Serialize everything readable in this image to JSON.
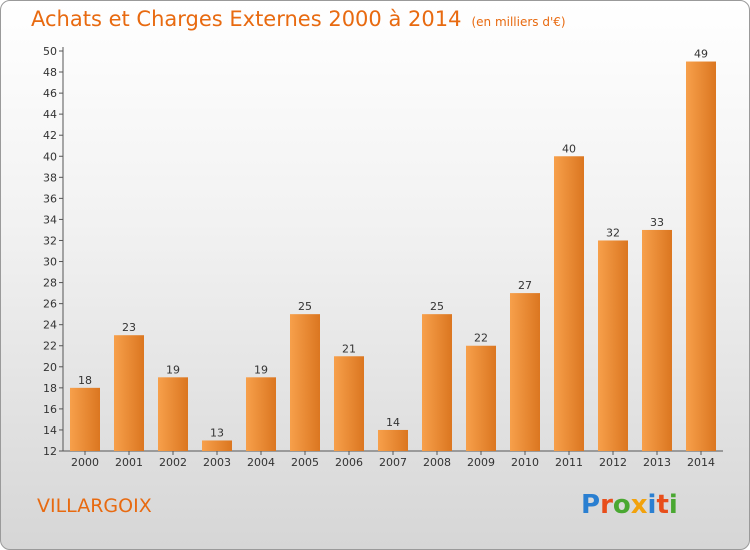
{
  "header": {
    "title": "Achats et Charges Externes 2000 à 2014",
    "subtitle": "(en milliers d'€)"
  },
  "footer": {
    "town": "VILLARGOIX",
    "logo_text": "Proxiti"
  },
  "colors": {
    "accent": "#e86a10",
    "bar_light": "#f7a04b",
    "bar_dark": "#d9731d"
  },
  "chart_data": {
    "type": "bar",
    "title": "Achats et Charges Externes 2000 à 2014",
    "subtitle": "(en milliers d'€)",
    "xlabel": "",
    "ylabel": "",
    "categories": [
      "2000",
      "2001",
      "2002",
      "2003",
      "2004",
      "2005",
      "2006",
      "2007",
      "2008",
      "2009",
      "2010",
      "2011",
      "2012",
      "2013",
      "2014"
    ],
    "values": [
      18,
      23,
      19,
      13,
      19,
      25,
      21,
      14,
      25,
      22,
      27,
      40,
      32,
      33,
      49
    ],
    "ylim": [
      12,
      50
    ],
    "yticks": [
      12,
      14,
      16,
      18,
      20,
      22,
      24,
      26,
      28,
      30,
      32,
      34,
      36,
      38,
      40,
      42,
      44,
      46,
      48,
      50
    ],
    "grid": false,
    "legend": "none"
  }
}
